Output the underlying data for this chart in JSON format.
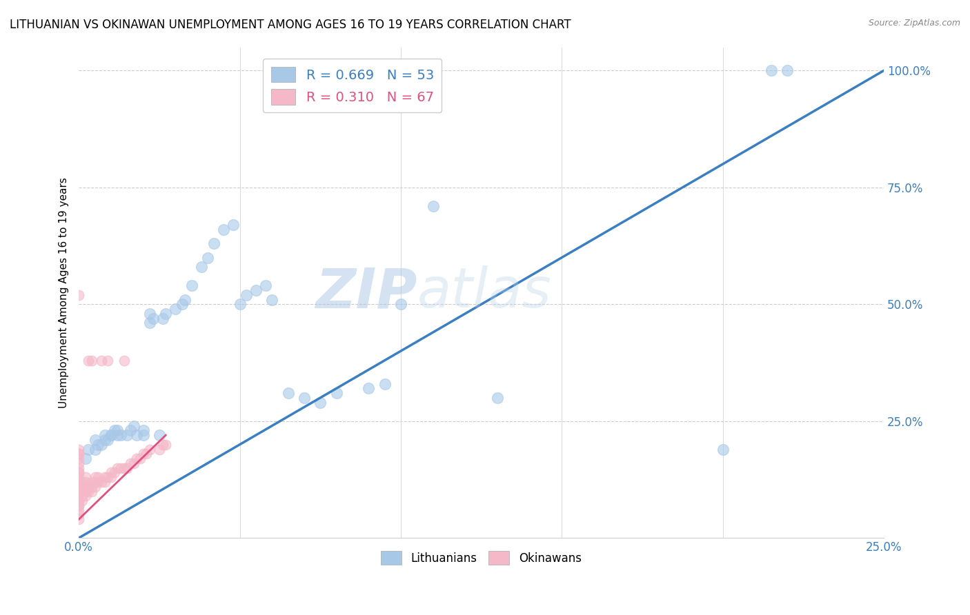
{
  "title": "LITHUANIAN VS OKINAWAN UNEMPLOYMENT AMONG AGES 16 TO 19 YEARS CORRELATION CHART",
  "source": "Source: ZipAtlas.com",
  "ylabel": "Unemployment Among Ages 16 to 19 years",
  "xlabel": "",
  "xlim": [
    0.0,
    0.25
  ],
  "ylim": [
    0.0,
    1.05
  ],
  "xticks": [
    0.0,
    0.05,
    0.1,
    0.15,
    0.2,
    0.25
  ],
  "xticklabels": [
    "0.0%",
    "",
    "",
    "",
    "",
    "25.0%"
  ],
  "yticks": [
    0.25,
    0.5,
    0.75,
    1.0
  ],
  "yticklabels": [
    "25.0%",
    "50.0%",
    "75.0%",
    "100.0%"
  ],
  "blue_color": "#a8c8e8",
  "pink_color": "#f4b8c8",
  "blue_line_color": "#3a7fc1",
  "pink_line_color": "#e05080",
  "dashed_line_color": "#e8b0b8",
  "legend_blue_R": "R = 0.669",
  "legend_blue_N": "N = 53",
  "legend_pink_R": "R = 0.310",
  "legend_pink_N": "N = 67",
  "watermark_zip": "ZIP",
  "watermark_atlas": "atlas",
  "blue_scatter_x": [
    0.002,
    0.003,
    0.005,
    0.005,
    0.006,
    0.007,
    0.008,
    0.008,
    0.009,
    0.01,
    0.01,
    0.011,
    0.012,
    0.012,
    0.013,
    0.015,
    0.016,
    0.017,
    0.018,
    0.02,
    0.02,
    0.022,
    0.022,
    0.023,
    0.025,
    0.026,
    0.027,
    0.03,
    0.032,
    0.033,
    0.035,
    0.038,
    0.04,
    0.042,
    0.045,
    0.048,
    0.05,
    0.052,
    0.055,
    0.058,
    0.06,
    0.065,
    0.07,
    0.075,
    0.08,
    0.09,
    0.095,
    0.1,
    0.11,
    0.13,
    0.2,
    0.215,
    0.22
  ],
  "blue_scatter_y": [
    0.17,
    0.19,
    0.19,
    0.21,
    0.2,
    0.2,
    0.21,
    0.22,
    0.21,
    0.22,
    0.22,
    0.23,
    0.22,
    0.23,
    0.22,
    0.22,
    0.23,
    0.24,
    0.22,
    0.22,
    0.23,
    0.46,
    0.48,
    0.47,
    0.22,
    0.47,
    0.48,
    0.49,
    0.5,
    0.51,
    0.54,
    0.58,
    0.6,
    0.63,
    0.66,
    0.67,
    0.5,
    0.52,
    0.53,
    0.54,
    0.51,
    0.31,
    0.3,
    0.29,
    0.31,
    0.32,
    0.33,
    0.5,
    0.71,
    0.3,
    0.19,
    1.0,
    1.0
  ],
  "pink_scatter_x": [
    0.0,
    0.0,
    0.0,
    0.0,
    0.0,
    0.0,
    0.0,
    0.0,
    0.0,
    0.0,
    0.0,
    0.0,
    0.0,
    0.0,
    0.0,
    0.0,
    0.0,
    0.0,
    0.0,
    0.0,
    0.0,
    0.001,
    0.001,
    0.001,
    0.001,
    0.001,
    0.002,
    0.002,
    0.002,
    0.002,
    0.002,
    0.003,
    0.003,
    0.003,
    0.004,
    0.004,
    0.004,
    0.004,
    0.005,
    0.005,
    0.005,
    0.006,
    0.006,
    0.007,
    0.007,
    0.008,
    0.008,
    0.009,
    0.009,
    0.01,
    0.01,
    0.011,
    0.012,
    0.013,
    0.014,
    0.014,
    0.015,
    0.016,
    0.017,
    0.018,
    0.019,
    0.02,
    0.021,
    0.022,
    0.025,
    0.026,
    0.027
  ],
  "pink_scatter_y": [
    0.04,
    0.05,
    0.06,
    0.07,
    0.07,
    0.08,
    0.08,
    0.09,
    0.1,
    0.11,
    0.12,
    0.13,
    0.14,
    0.14,
    0.15,
    0.16,
    0.17,
    0.18,
    0.18,
    0.19,
    0.52,
    0.08,
    0.09,
    0.1,
    0.11,
    0.12,
    0.09,
    0.1,
    0.11,
    0.12,
    0.13,
    0.1,
    0.11,
    0.38,
    0.1,
    0.11,
    0.12,
    0.38,
    0.11,
    0.12,
    0.13,
    0.12,
    0.13,
    0.12,
    0.38,
    0.12,
    0.13,
    0.13,
    0.38,
    0.13,
    0.14,
    0.14,
    0.15,
    0.15,
    0.15,
    0.38,
    0.15,
    0.16,
    0.16,
    0.17,
    0.17,
    0.18,
    0.18,
    0.19,
    0.19,
    0.2,
    0.2
  ],
  "blue_line_x": [
    0.0,
    0.25
  ],
  "blue_line_y": [
    0.0,
    1.0
  ],
  "pink_line_x": [
    0.0,
    0.027
  ],
  "pink_line_y_start": 0.04,
  "pink_line_y_end": 0.22,
  "dashed_line_x": [
    0.0,
    0.25
  ],
  "dashed_line_y": [
    0.0,
    1.0
  ]
}
